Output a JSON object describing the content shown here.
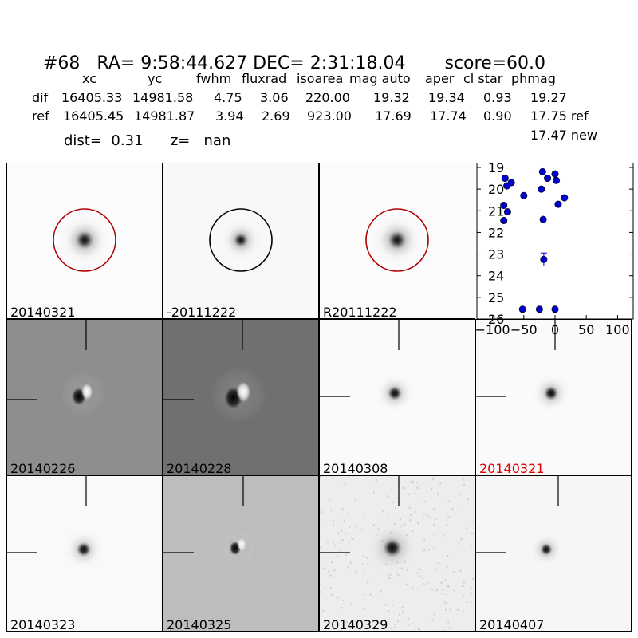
{
  "header": {
    "id": "#68",
    "ra": "RA= 9:58:44.627",
    "dec": "DEC= 2:31:18.04",
    "score": "score=60.0"
  },
  "table": {
    "columns": [
      "xc",
      "yc",
      "fwhm",
      "fluxrad",
      "isoarea",
      "mag auto",
      "aper",
      "cl star",
      "phmag"
    ],
    "rows": [
      {
        "label": "dif",
        "xc": "16405.33",
        "yc": "14981.58",
        "fwhm": "4.75",
        "fluxrad": "3.06",
        "isoarea": "220.00",
        "mag_auto": "19.32",
        "aper": "19.34",
        "cl_star": "0.93",
        "phmag": "19.27"
      },
      {
        "label": "ref",
        "xc": "16405.45",
        "yc": "14981.87",
        "fwhm": "3.94",
        "fluxrad": "2.69",
        "isoarea": "923.00",
        "mag_auto": "17.69",
        "aper": "17.74",
        "cl_star": "0.90",
        "phmag": "17.75 ref"
      }
    ],
    "extra_phmag": "17.47 new"
  },
  "dist_line": {
    "dist": "dist=  0.31",
    "z": "z=   nan"
  },
  "panels": [
    {
      "label": "20140321",
      "bg": "#fbfbfb",
      "kind": "star",
      "circle": "#b00000",
      "crosshair": false
    },
    {
      "label": "-20111222",
      "bg": "#f8f8f8",
      "kind": "star-small",
      "circle": "#000000",
      "crosshair": false
    },
    {
      "label": "R20111222",
      "bg": "#fbfbfb",
      "kind": "star",
      "circle": "#b00000",
      "crosshair": false
    },
    {
      "label": "20140226",
      "bg": "#8e8e8e",
      "kind": "dipole",
      "circle": "",
      "crosshair": true
    },
    {
      "label": "20140228",
      "bg": "#707070",
      "kind": "dipole-big",
      "circle": "",
      "crosshair": true
    },
    {
      "label": "20140308",
      "bg": "#fafafa",
      "kind": "point",
      "circle": "",
      "crosshair": true
    },
    {
      "label": "20140321",
      "bg": "#fafafa",
      "kind": "point",
      "circle": "",
      "crosshair": true,
      "highlight": true
    },
    {
      "label": "20140323",
      "bg": "#f9f9f9",
      "kind": "point",
      "circle": "",
      "crosshair": true
    },
    {
      "label": "20140325",
      "bg": "#bdbdbd",
      "kind": "dipole-small",
      "circle": "",
      "crosshair": true
    },
    {
      "label": "20140329",
      "bg": "#ededed",
      "kind": "noisy",
      "circle": "",
      "crosshair": true
    },
    {
      "label": "20140407",
      "bg": "#f6f6f6",
      "kind": "point-small",
      "circle": "",
      "crosshair": true
    }
  ],
  "chart_data": {
    "type": "scatter",
    "xlim": [
      -125,
      125
    ],
    "ylim": [
      26,
      19
    ],
    "x_ticks": [
      "−100",
      "−50",
      "0",
      "50",
      "100"
    ],
    "x_tick_values": [
      -100,
      -50,
      0,
      50,
      100
    ],
    "y_ticks": [
      "19",
      "20",
      "21",
      "22",
      "23",
      "24",
      "25",
      "26"
    ],
    "y_tick_values": [
      19,
      20,
      21,
      22,
      23,
      24,
      25,
      26
    ],
    "color": "#0000cc",
    "points": [
      {
        "x": -20,
        "y": 19.2
      },
      {
        "x": 0,
        "y": 19.3
      },
      {
        "x": -80,
        "y": 19.5
      },
      {
        "x": -12,
        "y": 19.5
      },
      {
        "x": 2,
        "y": 19.6
      },
      {
        "x": -70,
        "y": 19.7
      },
      {
        "x": -77,
        "y": 19.85
      },
      {
        "x": -22,
        "y": 20.0
      },
      {
        "x": -50,
        "y": 20.3
      },
      {
        "x": 15,
        "y": 20.4
      },
      {
        "x": -82,
        "y": 20.75
      },
      {
        "x": 5,
        "y": 20.7
      },
      {
        "x": -76,
        "y": 21.05
      },
      {
        "x": -82,
        "y": 21.45
      },
      {
        "x": -19,
        "y": 21.4
      },
      {
        "x": -18,
        "y": 23.25,
        "err": 0.3
      },
      {
        "x": -52,
        "y": 25.55
      },
      {
        "x": -25,
        "y": 25.55
      },
      {
        "x": 0,
        "y": 25.55
      }
    ]
  }
}
